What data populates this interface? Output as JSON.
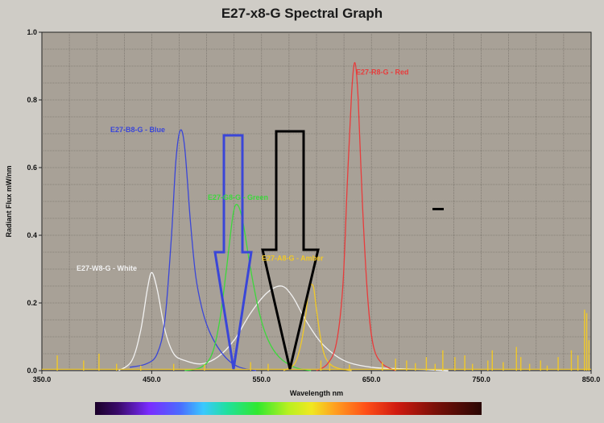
{
  "chart_data": {
    "type": "line",
    "title": "E27-x8-G Spectral Graph",
    "xlabel": "Wavelength  nm",
    "ylabel": "Radiant Flux  mW/nm",
    "xlim": [
      350,
      850
    ],
    "ylim": [
      0,
      1.0
    ],
    "x_ticks": [
      350.0,
      450.0,
      550.0,
      650.0,
      750.0,
      850.0
    ],
    "x_tick_labels": [
      "350.0",
      "450.0",
      "550.0",
      "650.0",
      "750.0",
      "850.0"
    ],
    "y_ticks": [
      0.0,
      0.2,
      0.4,
      0.6,
      0.8,
      1.0
    ],
    "y_tick_labels": [
      "0.0",
      "0.2",
      "0.4",
      "0.6",
      "0.8",
      "1.0"
    ],
    "grid": true,
    "plot_background": "#a8a197",
    "series": [
      {
        "name": "E27-B8-G - Blue",
        "color": "#3a46d8",
        "x": [
          430,
          445,
          455,
          462,
          468,
          472,
          476,
          480,
          485,
          490,
          496,
          502,
          510,
          520,
          530,
          545
        ],
        "y": [
          0.01,
          0.02,
          0.05,
          0.15,
          0.4,
          0.62,
          0.71,
          0.66,
          0.45,
          0.28,
          0.18,
          0.12,
          0.07,
          0.03,
          0.01,
          0.0
        ]
      },
      {
        "name": "E27-G8-G - Green",
        "color": "#3cd83c",
        "x": [
          480,
          495,
          505,
          512,
          518,
          524,
          528,
          533,
          540,
          548,
          556,
          566,
          580,
          595
        ],
        "y": [
          0.0,
          0.01,
          0.05,
          0.15,
          0.3,
          0.46,
          0.49,
          0.44,
          0.3,
          0.17,
          0.09,
          0.04,
          0.01,
          0.0
        ]
      },
      {
        "name": "E27-A8-G - Amber",
        "color": "#f0c828",
        "x": [
          570,
          580,
          586,
          590,
          593,
          597,
          600,
          604,
          608,
          614,
          622,
          632
        ],
        "y": [
          0.0,
          0.02,
          0.08,
          0.16,
          0.24,
          0.25,
          0.18,
          0.09,
          0.04,
          0.015,
          0.005,
          0.0
        ]
      },
      {
        "name": "E27-R8-G - Red",
        "color": "#e83c3c",
        "x": [
          600,
          610,
          618,
          624,
          628,
          632,
          635,
          638,
          642,
          647,
          652,
          660,
          672
        ],
        "y": [
          0.0,
          0.02,
          0.08,
          0.25,
          0.55,
          0.82,
          0.91,
          0.8,
          0.48,
          0.2,
          0.07,
          0.02,
          0.0
        ]
      },
      {
        "name": "E27-W8-G - White",
        "color": "#f2f2f2",
        "x": [
          420,
          432,
          440,
          446,
          450,
          455,
          462,
          470,
          480,
          495,
          510,
          525,
          540,
          555,
          568,
          578,
          590,
          605,
          625,
          650,
          680,
          720
        ],
        "y": [
          0.0,
          0.03,
          0.12,
          0.24,
          0.29,
          0.24,
          0.12,
          0.05,
          0.03,
          0.02,
          0.04,
          0.09,
          0.17,
          0.23,
          0.25,
          0.22,
          0.15,
          0.08,
          0.03,
          0.01,
          0.005,
          0.0
        ]
      }
    ],
    "annotations": {
      "blue_arrow_color": "#3a46d8",
      "black_arrow_color": "#000000",
      "marker_color": "#000000"
    },
    "spectrum_bar": true
  }
}
